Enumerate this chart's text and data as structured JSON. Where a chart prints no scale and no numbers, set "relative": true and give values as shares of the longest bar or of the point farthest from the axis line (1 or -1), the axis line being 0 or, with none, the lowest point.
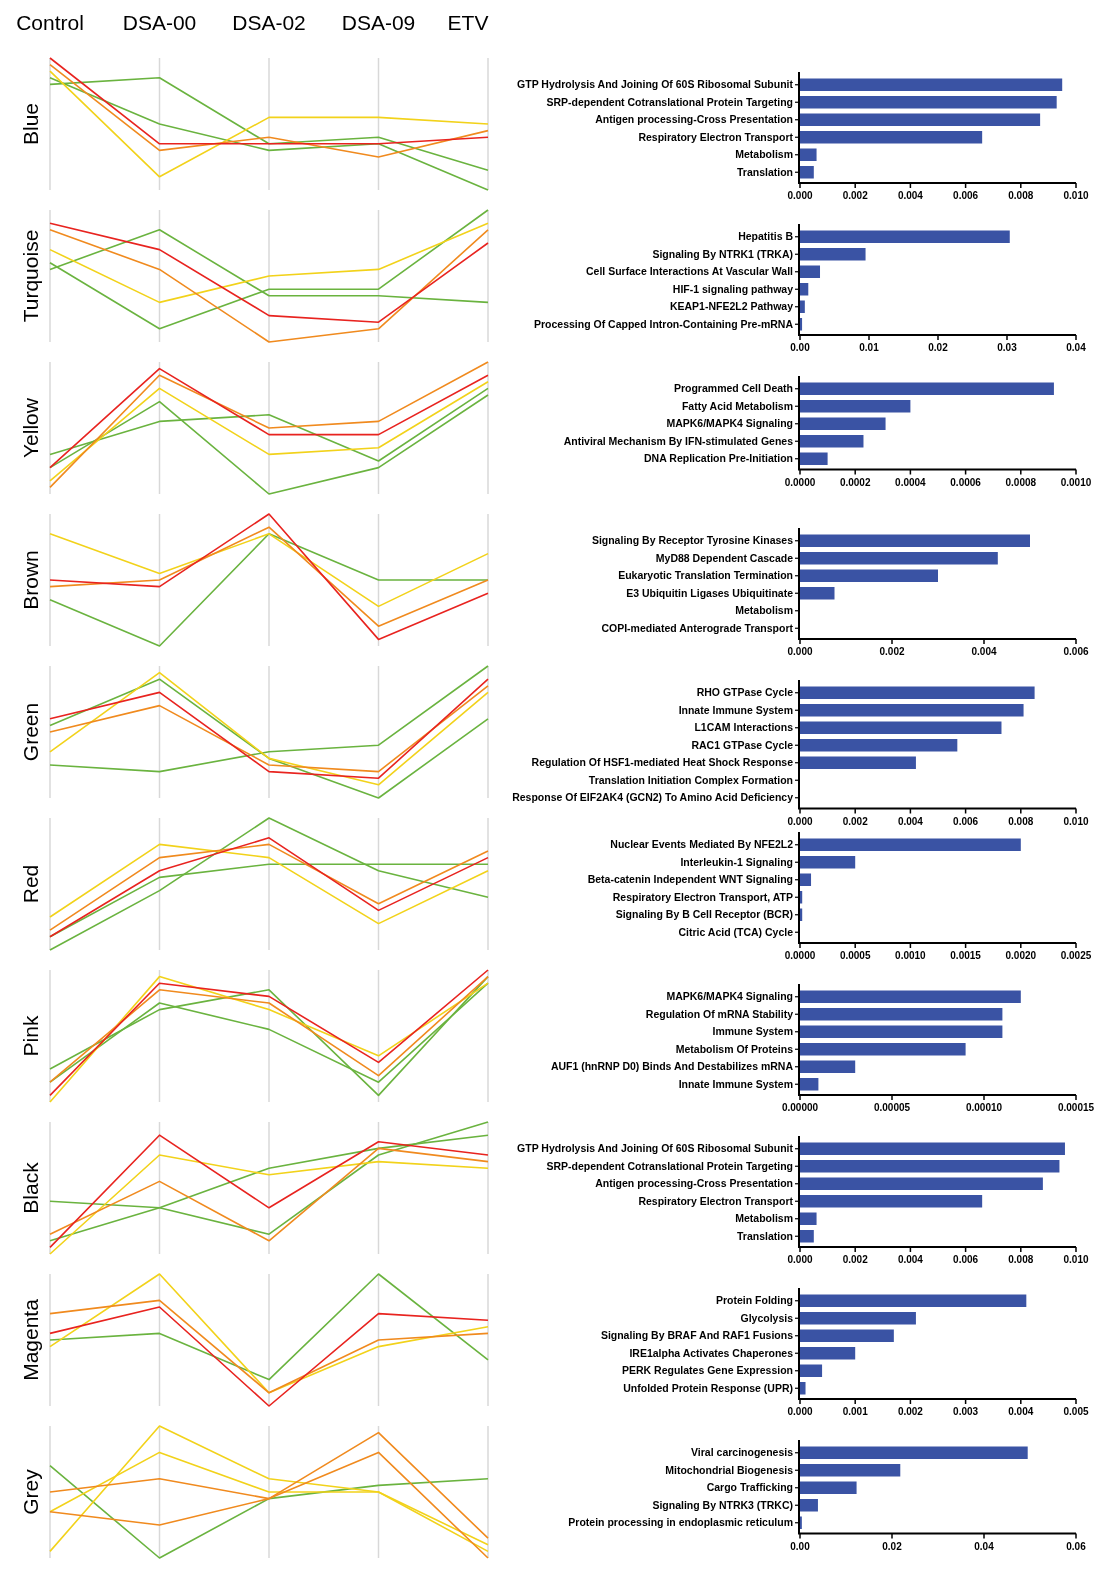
{
  "chart_data": [
    {
      "type": "line",
      "ylabel": "Blue",
      "categories": [
        "Control",
        "DSA-00",
        "DSA-02",
        "DSA-09",
        "ETV"
      ],
      "relative": true,
      "grid": "x",
      "tick_labels": "x",
      "series": [
        {
          "color": "#6ab33f",
          "values": [
            0.8,
            0.85,
            0.35,
            0.4,
            0.15
          ]
        },
        {
          "color": "#6ab33f",
          "values": [
            0.85,
            0.5,
            0.3,
            0.35,
            0
          ]
        },
        {
          "color": "#f2d21a",
          "values": [
            0.9,
            0.1,
            0.55,
            0.55,
            0.5
          ]
        },
        {
          "color": "#f08a1e",
          "values": [
            0.95,
            0.3,
            0.4,
            0.25,
            0.45
          ]
        },
        {
          "color": "#e8231f",
          "values": [
            1,
            0.35,
            0.35,
            0.35,
            0.4
          ]
        }
      ]
    },
    {
      "type": "bar",
      "orientation": "horizontal",
      "color": "#3a53a4",
      "categories": [
        "GTP Hydrolysis And Joining Of 60S Ribosomal Subunit",
        "SRP-dependent Cotranslational Protein Targeting",
        "Antigen processing-Cross Presentation",
        "Respiratory Electron Transport",
        "Metabolism",
        "Translation"
      ],
      "values": [
        0.0095,
        0.0093,
        0.0087,
        0.0066,
        0.0006,
        0.0005
      ],
      "xlim": [
        0,
        0.01
      ],
      "xticks": [
        {
          "value": 0,
          "label": "0.000"
        },
        {
          "value": 0.002,
          "label": "0.002"
        },
        {
          "value": 0.004,
          "label": "0.004"
        },
        {
          "value": 0.006,
          "label": "0.006"
        },
        {
          "value": 0.008,
          "label": "0.008"
        },
        {
          "value": 0.01,
          "label": "0.010"
        }
      ]
    },
    {
      "type": "line",
      "ylabel": "Turquoise",
      "categories": [
        null,
        null,
        null,
        null,
        null
      ],
      "relative": true,
      "grid": "x",
      "series": [
        {
          "color": "#6ab33f",
          "values": [
            0.6,
            0.1,
            0.4,
            0.4,
            1
          ]
        },
        {
          "color": "#6ab33f",
          "values": [
            0.55,
            0.85,
            0.35,
            0.35,
            0.3
          ]
        },
        {
          "color": "#f2d21a",
          "values": [
            0.7,
            0.3,
            0.5,
            0.55,
            0.9
          ]
        },
        {
          "color": "#f08a1e",
          "values": [
            0.85,
            0.55,
            0,
            0.1,
            0.85
          ]
        },
        {
          "color": "#e8231f",
          "values": [
            0.9,
            0.7,
            0.2,
            0.15,
            0.75
          ]
        }
      ]
    },
    {
      "type": "bar",
      "orientation": "horizontal",
      "color": "#3a53a4",
      "categories": [
        "Hepatitis B",
        "Signaling By NTRK1 (TRKA)",
        "Cell Surface Interactions At Vascular Wall",
        "HIF-1 signaling pathway",
        "KEAP1-NFE2L2 Pathway",
        "Processing Of Capped Intron-Containing Pre-mRNA"
      ],
      "values": [
        0.0304,
        0.0095,
        0.0029,
        0.0012,
        0.0007,
        0.0003
      ],
      "xlim": [
        0,
        0.04
      ],
      "xticks": [
        {
          "value": 0,
          "label": "0.00"
        },
        {
          "value": 0.01,
          "label": "0.01"
        },
        {
          "value": 0.02,
          "label": "0.02"
        },
        {
          "value": 0.03,
          "label": "0.03"
        },
        {
          "value": 0.04,
          "label": "0.04"
        }
      ]
    },
    {
      "type": "line",
      "ylabel": "Yellow",
      "categories": [
        null,
        null,
        null,
        null,
        null
      ],
      "relative": true,
      "grid": "x",
      "series": [
        {
          "color": "#6ab33f",
          "values": [
            0.3,
            0.55,
            0.6,
            0.25,
            0.8
          ]
        },
        {
          "color": "#6ab33f",
          "values": [
            0.2,
            0.7,
            0,
            0.2,
            0.75
          ]
        },
        {
          "color": "#f2d21a",
          "values": [
            0.1,
            0.8,
            0.3,
            0.35,
            0.85
          ]
        },
        {
          "color": "#f08a1e",
          "values": [
            0.05,
            0.9,
            0.5,
            0.55,
            1
          ]
        },
        {
          "color": "#e8231f",
          "values": [
            0.2,
            0.95,
            0.45,
            0.45,
            0.9
          ]
        }
      ]
    },
    {
      "type": "bar",
      "orientation": "horizontal",
      "color": "#3a53a4",
      "categories": [
        "Programmed Cell Death",
        "Fatty Acid Metabolism",
        "MAPK6/MAPK4 Signaling",
        "Antiviral Mechanism By IFN-stimulated Genes",
        "DNA Replication Pre-Initiation"
      ],
      "values": [
        0.00092,
        0.0004,
        0.00031,
        0.00023,
        0.0001
      ],
      "xlim": [
        0,
        0.001
      ],
      "xticks": [
        {
          "value": 0,
          "label": "0.0000"
        },
        {
          "value": 0.0002,
          "label": "0.0002"
        },
        {
          "value": 0.0004,
          "label": "0.0004"
        },
        {
          "value": 0.0006,
          "label": "0.0006"
        },
        {
          "value": 0.0008,
          "label": "0.0008"
        },
        {
          "value": 0.001,
          "label": "0.0010"
        }
      ]
    },
    {
      "type": "line",
      "ylabel": "Brown",
      "categories": [
        null,
        null,
        null,
        null,
        null
      ],
      "relative": true,
      "grid": "x",
      "series": [
        {
          "color": "#6ab33f",
          "values": [
            0.35,
            0,
            0.85,
            0.5,
            0.5
          ]
        },
        {
          "color": "#f2d21a",
          "values": [
            0.85,
            0.55,
            0.85,
            0.3,
            0.7
          ]
        },
        {
          "color": "#f08a1e",
          "values": [
            0.45,
            0.5,
            0.9,
            0.15,
            0.5
          ]
        },
        {
          "color": "#e8231f",
          "values": [
            0.5,
            0.45,
            1,
            0.05,
            0.4
          ]
        }
      ]
    },
    {
      "type": "bar",
      "orientation": "horizontal",
      "color": "#3a53a4",
      "categories": [
        "Signaling By Receptor Tyrosine Kinases",
        "MyD88 Dependent Cascade",
        "Eukaryotic Translation Termination",
        "E3 Ubiquitin Ligases Ubiquitinate",
        "Metabolism",
        "COPI-mediated Anterograde Transport"
      ],
      "values": [
        0.005,
        0.0043,
        0.003,
        0.00075,
        0,
        0
      ],
      "xlim": [
        0,
        0.006
      ],
      "xticks": [
        {
          "value": 0,
          "label": "0.000"
        },
        {
          "value": 0.002,
          "label": "0.002"
        },
        {
          "value": 0.004,
          "label": "0.004"
        },
        {
          "value": 0.006,
          "label": "0.006"
        }
      ]
    },
    {
      "type": "line",
      "ylabel": "Green",
      "categories": [
        null,
        null,
        null,
        null,
        null
      ],
      "relative": true,
      "grid": "x",
      "series": [
        {
          "color": "#6ab33f",
          "values": [
            0.25,
            0.2,
            0.35,
            0.4,
            1
          ]
        },
        {
          "color": "#6ab33f",
          "values": [
            0.55,
            0.9,
            0.3,
            0,
            0.6
          ]
        },
        {
          "color": "#f2d21a",
          "values": [
            0.35,
            0.95,
            0.3,
            0.1,
            0.8
          ]
        },
        {
          "color": "#f08a1e",
          "values": [
            0.5,
            0.7,
            0.25,
            0.2,
            0.85
          ]
        },
        {
          "color": "#e8231f",
          "values": [
            0.6,
            0.8,
            0.2,
            0.15,
            0.9
          ]
        }
      ]
    },
    {
      "type": "bar",
      "orientation": "horizontal",
      "color": "#3a53a4",
      "categories": [
        "RHO GTPase Cycle",
        "Innate Immune System",
        "L1CAM Interactions",
        "RAC1 GTPase Cycle",
        "Regulation Of HSF1-mediated Heat Shock Response",
        "Translation Initiation Complex Formation",
        "Response Of EIF2AK4 (GCN2) To Amino Acid Deficiency"
      ],
      "values": [
        0.0085,
        0.0081,
        0.0073,
        0.0057,
        0.0042,
        0,
        0
      ],
      "xlim": [
        0,
        0.01
      ],
      "xticks": [
        {
          "value": 0,
          "label": "0.000"
        },
        {
          "value": 0.002,
          "label": "0.002"
        },
        {
          "value": 0.004,
          "label": "0.004"
        },
        {
          "value": 0.006,
          "label": "0.006"
        },
        {
          "value": 0.008,
          "label": "0.008"
        },
        {
          "value": 0.01,
          "label": "0.010"
        }
      ]
    },
    {
      "type": "line",
      "ylabel": "Red",
      "categories": [
        null,
        null,
        null,
        null,
        null
      ],
      "relative": true,
      "grid": "x",
      "series": [
        {
          "color": "#6ab33f",
          "values": [
            0,
            0.45,
            1,
            0.6,
            0.4
          ]
        },
        {
          "color": "#6ab33f",
          "values": [
            0.1,
            0.55,
            0.65,
            0.65,
            0.65
          ]
        },
        {
          "color": "#f2d21a",
          "values": [
            0.25,
            0.8,
            0.7,
            0.2,
            0.6
          ]
        },
        {
          "color": "#f08a1e",
          "values": [
            0.15,
            0.7,
            0.8,
            0.35,
            0.75
          ]
        },
        {
          "color": "#e8231f",
          "values": [
            0.1,
            0.6,
            0.85,
            0.3,
            0.7
          ]
        }
      ]
    },
    {
      "type": "bar",
      "orientation": "horizontal",
      "color": "#3a53a4",
      "categories": [
        "Nuclear Events Mediated By NFE2L2",
        "Interleukin-1 Signaling",
        "Beta-catenin Independent WNT Signaling",
        "Respiratory Electron Transport, ATP",
        "Signaling By B Cell Receptor (BCR)",
        "Citric Acid (TCA) Cycle"
      ],
      "values": [
        0.002,
        0.0005,
        0.0001,
        2e-05,
        2e-05,
        0
      ],
      "xlim": [
        0,
        0.0025
      ],
      "xticks": [
        {
          "value": 0,
          "label": "0.0000"
        },
        {
          "value": 0.0005,
          "label": "0.0005"
        },
        {
          "value": 0.001,
          "label": "0.0010"
        },
        {
          "value": 0.0015,
          "label": "0.0015"
        },
        {
          "value": 0.002,
          "label": "0.0020"
        },
        {
          "value": 0.0025,
          "label": "0.0025"
        }
      ]
    },
    {
      "type": "line",
      "ylabel": "Pink",
      "categories": [
        null,
        null,
        null,
        null,
        null
      ],
      "relative": true,
      "grid": "x",
      "series": [
        {
          "color": "#6ab33f",
          "values": [
            0.25,
            0.7,
            0.85,
            0.05,
            0.95
          ]
        },
        {
          "color": "#6ab33f",
          "values": [
            0.15,
            0.75,
            0.55,
            0.15,
            0.9
          ]
        },
        {
          "color": "#f2d21a",
          "values": [
            0,
            0.95,
            0.7,
            0.35,
            0.9
          ]
        },
        {
          "color": "#f08a1e",
          "values": [
            0.15,
            0.85,
            0.75,
            0.2,
            0.95
          ]
        },
        {
          "color": "#e8231f",
          "values": [
            0.05,
            0.9,
            0.8,
            0.3,
            1
          ]
        }
      ]
    },
    {
      "type": "bar",
      "orientation": "horizontal",
      "color": "#3a53a4",
      "categories": [
        "MAPK6/MAPK4 Signaling",
        "Regulation Of mRNA Stability",
        "Immune System",
        "Metabolism Of Proteins",
        "AUF1 (hnRNP D0) Binds And Destabilizes mRNA",
        "Innate Immune System"
      ],
      "values": [
        0.00012,
        0.00011,
        0.00011,
        9e-05,
        3e-05,
        1e-05
      ],
      "xlim": [
        0,
        0.00015
      ],
      "xticks": [
        {
          "value": 0,
          "label": "0.00000"
        },
        {
          "value": 5e-05,
          "label": "0.00005"
        },
        {
          "value": 0.0001,
          "label": "0.00010"
        },
        {
          "value": 0.00015,
          "label": "0.00015"
        }
      ]
    },
    {
      "type": "line",
      "ylabel": "Black",
      "categories": [
        null,
        null,
        null,
        null,
        null
      ],
      "relative": true,
      "grid": "x",
      "series": [
        {
          "color": "#6ab33f",
          "values": [
            0.4,
            0.35,
            0.15,
            0.75,
            1
          ]
        },
        {
          "color": "#6ab33f",
          "values": [
            0.1,
            0.35,
            0.65,
            0.8,
            0.9
          ]
        },
        {
          "color": "#f2d21a",
          "values": [
            0,
            0.75,
            0.6,
            0.7,
            0.65
          ]
        },
        {
          "color": "#f08a1e",
          "values": [
            0.15,
            0.55,
            0.1,
            0.8,
            0.7
          ]
        },
        {
          "color": "#e8231f",
          "values": [
            0.05,
            0.9,
            0.35,
            0.85,
            0.75
          ]
        }
      ]
    },
    {
      "type": "bar",
      "orientation": "horizontal",
      "color": "#3a53a4",
      "categories": [
        "GTP Hydrolysis And Joining Of 60S Ribosomal Subunit",
        "SRP-dependent Cotranslational Protein Targeting",
        "Antigen processing-Cross Presentation",
        "Respiratory Electron Transport",
        "Metabolism",
        "Translation"
      ],
      "values": [
        0.0096,
        0.0094,
        0.0088,
        0.0066,
        0.0006,
        0.0005
      ],
      "xlim": [
        0,
        0.01
      ],
      "xticks": [
        {
          "value": 0,
          "label": "0.000"
        },
        {
          "value": 0.002,
          "label": "0.002"
        },
        {
          "value": 0.004,
          "label": "0.004"
        },
        {
          "value": 0.006,
          "label": "0.006"
        },
        {
          "value": 0.008,
          "label": "0.008"
        },
        {
          "value": 0.01,
          "label": "0.010"
        }
      ]
    },
    {
      "type": "line",
      "ylabel": "Magenta",
      "categories": [
        null,
        null,
        null,
        null,
        null
      ],
      "relative": true,
      "grid": "x",
      "series": [
        {
          "color": "#6ab33f",
          "values": [
            0.5,
            0.55,
            0.2,
            1,
            0.35
          ]
        },
        {
          "color": "#f2d21a",
          "values": [
            0.45,
            1,
            0.1,
            0.45,
            0.6
          ]
        },
        {
          "color": "#f08a1e",
          "values": [
            0.7,
            0.8,
            0.1,
            0.5,
            0.55
          ]
        },
        {
          "color": "#e8231f",
          "values": [
            0.55,
            0.75,
            0,
            0.7,
            0.65
          ]
        }
      ]
    },
    {
      "type": "bar",
      "orientation": "horizontal",
      "color": "#3a53a4",
      "categories": [
        "Protein Folding",
        "Glycolysis",
        "Signaling By BRAF And RAF1 Fusions",
        "IRE1alpha Activates Chaperones",
        "PERK Regulates Gene Expression",
        "Unfolded Protein Response (UPR)"
      ],
      "values": [
        0.0041,
        0.0021,
        0.0017,
        0.001,
        0.0004,
        0.0001
      ],
      "xlim": [
        0,
        0.005
      ],
      "xticks": [
        {
          "value": 0,
          "label": "0.000"
        },
        {
          "value": 0.001,
          "label": "0.001"
        },
        {
          "value": 0.002,
          "label": "0.002"
        },
        {
          "value": 0.003,
          "label": "0.003"
        },
        {
          "value": 0.004,
          "label": "0.004"
        },
        {
          "value": 0.005,
          "label": "0.005"
        }
      ]
    },
    {
      "type": "line",
      "ylabel": "Grey",
      "categories": [
        null,
        null,
        null,
        null,
        null
      ],
      "relative": true,
      "grid": "x",
      "series": [
        {
          "color": "#6ab33f",
          "values": [
            0.7,
            0,
            0.45,
            0.55,
            0.6
          ]
        },
        {
          "color": "#f2d21a",
          "values": [
            0.05,
            1,
            0.6,
            0.5,
            0.05
          ]
        },
        {
          "color": "#f2d21a",
          "values": [
            0.35,
            0.8,
            0.5,
            0.5,
            0.1
          ]
        },
        {
          "color": "#f08a1e",
          "values": [
            0.5,
            0.6,
            0.45,
            0.8,
            0
          ]
        },
        {
          "color": "#f08a1e",
          "values": [
            0.35,
            0.25,
            0.45,
            0.95,
            0.15
          ]
        }
      ]
    },
    {
      "type": "bar",
      "orientation": "horizontal",
      "color": "#3a53a4",
      "categories": [
        "Viral carcinogenesis",
        "Mitochondrial Biogenesis",
        "Cargo Trafficking",
        "Signaling By NTRK3 (TRKC)",
        "Protein processing in endoplasmic reticulum"
      ],
      "values": [
        0.0495,
        0.0218,
        0.0123,
        0.0039,
        0.0004
      ],
      "xlim": [
        0,
        0.06
      ],
      "xticks": [
        {
          "value": 0,
          "label": "0.00"
        },
        {
          "value": 0.02,
          "label": "0.02"
        },
        {
          "value": 0.04,
          "label": "0.04"
        },
        {
          "value": 0.06,
          "label": "0.06"
        }
      ]
    }
  ]
}
